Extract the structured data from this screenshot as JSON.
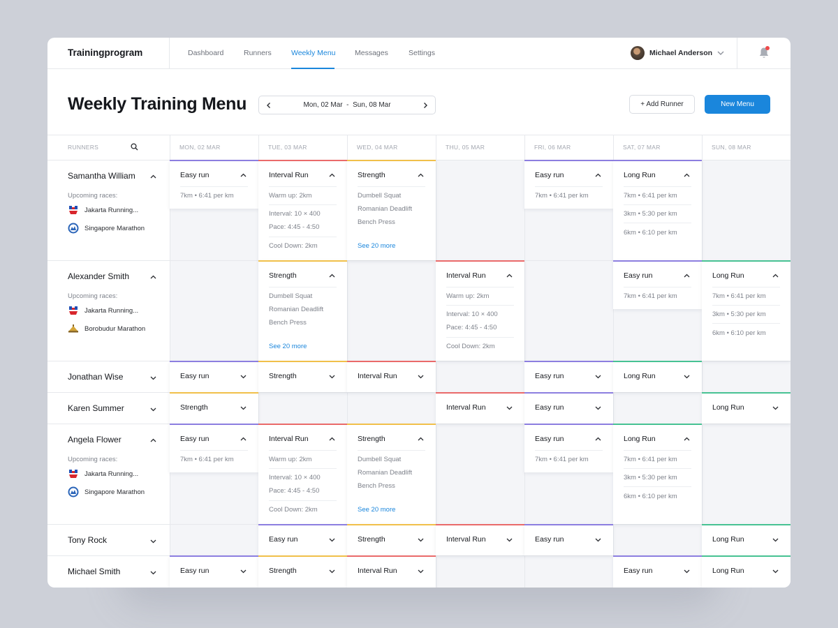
{
  "app": {
    "brand": "Trainingprogram"
  },
  "nav": [
    {
      "label": "Dashboard",
      "active": false
    },
    {
      "label": "Runners",
      "active": false
    },
    {
      "label": "Weekly Menu",
      "active": true
    },
    {
      "label": "Messages",
      "active": false
    },
    {
      "label": "Settings",
      "active": false
    }
  ],
  "user": {
    "name": "Michael Anderson"
  },
  "header": {
    "title": "Weekly Training Menu",
    "date_start": "Mon, 02 Mar",
    "date_sep": "-",
    "date_end": "Sun, 08 Mar",
    "add_runner": "+ Add Runner",
    "new_menu": "New Menu"
  },
  "colors": {
    "accent": "#1a86dc",
    "easy": "#8c7ee0",
    "strength": "#f1c04a",
    "interval": "#ea6a6a",
    "long": "#47c293"
  },
  "grid": {
    "runners_header": "RUNNERS",
    "days": [
      "MON, 02 MAR",
      "TUE, 03 MAR",
      "WED, 04 MAR",
      "THU, 05 MAR",
      "FRI, 06 MAR",
      "SAT, 07 MAR",
      "SUN, 08 MAR"
    ]
  },
  "runners": [
    {
      "name": "Samantha William",
      "expanded": true,
      "upcoming": "Upcoming races:",
      "races": [
        {
          "name": "Jakarta Running...",
          "icon": "jakarta-race-icon"
        },
        {
          "name": "Singapore Marathon",
          "icon": "singapore-race-icon"
        }
      ]
    },
    {
      "name": "Alexander Smith",
      "expanded": true,
      "upcoming": "Upcoming races:",
      "races": [
        {
          "name": "Jakarta Running...",
          "icon": "jakarta-race-icon"
        },
        {
          "name": "Borobudur Marathon",
          "icon": "borobudur-race-icon"
        }
      ]
    },
    {
      "name": "Jonathan Wise",
      "expanded": false
    },
    {
      "name": "Karen Summer",
      "expanded": false
    },
    {
      "name": "Angela Flower",
      "expanded": true,
      "upcoming": "Upcoming races:",
      "races": [
        {
          "name": "Jakarta Running...",
          "icon": "jakarta-race-icon"
        },
        {
          "name": "Singapore Marathon",
          "icon": "singapore-race-icon"
        }
      ]
    },
    {
      "name": "Tony Rock",
      "expanded": false
    },
    {
      "name": "Michael Smith",
      "expanded": false
    }
  ],
  "workouts": {
    "easy_short": {
      "title": "Easy run",
      "lines": [
        "7km  •  6:41 per km"
      ]
    },
    "easy_cap_short": {
      "title": "Easy run",
      "lines": [
        "7km  •  6:41 per km"
      ]
    },
    "interval": {
      "title": "Interval Run",
      "lines": [
        "Warm up: 2km",
        "Interval: 10 × 400",
        "Pace: 4:45 - 4:50",
        "Cool Down: 2km"
      ]
    },
    "strength": {
      "title": "Strength",
      "lines": [
        "Dumbell Squat",
        "Romanian Deadlift",
        "Bench Press"
      ],
      "more": "See 20 more"
    },
    "long": {
      "title": "Long Run",
      "lines": [
        "7km  •  6:41 per km",
        "3km  •  5:30 per km",
        "6km  •  6:10 per km"
      ]
    },
    "labels": {
      "easy_lower": "Easy run",
      "easy_title": "Easy Run",
      "strength": "Strength",
      "interval": "Interval Run",
      "long": "Long Run"
    }
  }
}
